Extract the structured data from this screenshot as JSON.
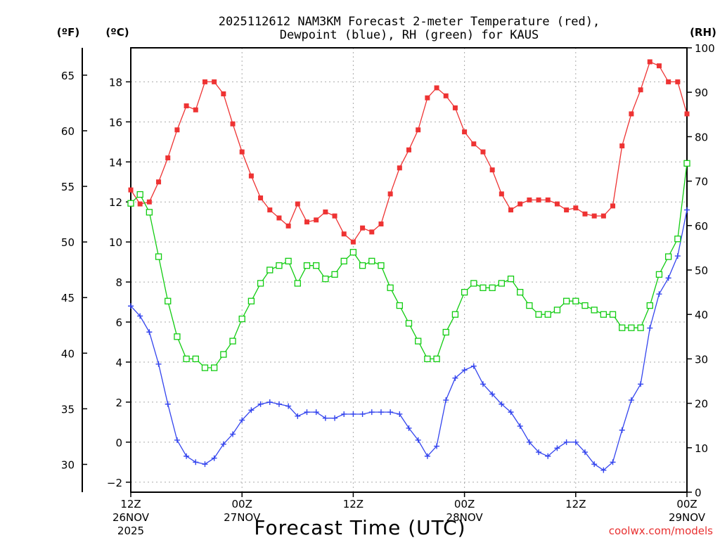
{
  "chart_data": {
    "type": "line",
    "title_line1": "2025112612 NAM3KM Forecast 2-meter Temperature (red),",
    "title_line2": "Dewpoint (blue), RH (green) for KAUS",
    "xlabel": "Forecast Time (UTC)",
    "credit": "coolwx.com/models",
    "left_units_f": "(ºF)",
    "left_units_c": "(ºC)",
    "right_units": "(RH)",
    "x_ticks": [
      {
        "hour": 0,
        "l1": "12Z",
        "l2": "26NOV",
        "l3": "2025"
      },
      {
        "hour": 12,
        "l1": "00Z",
        "l2": "27NOV",
        "l3": ""
      },
      {
        "hour": 24,
        "l1": "12Z",
        "l2": "",
        "l3": ""
      },
      {
        "hour": 36,
        "l1": "00Z",
        "l2": "28NOV",
        "l3": ""
      },
      {
        "hour": 48,
        "l1": "12Z",
        "l2": "",
        "l3": ""
      },
      {
        "hour": 60,
        "l1": "00Z",
        "l2": "29NOV",
        "l3": ""
      }
    ],
    "x_range": [
      0,
      60
    ],
    "y_celsius_range": [
      -2.5,
      19.7
    ],
    "y_celsius_ticks": [
      -2,
      0,
      2,
      4,
      6,
      8,
      10,
      12,
      14,
      16,
      18
    ],
    "y_fahrenheit_ticks": [
      30,
      35,
      40,
      45,
      50,
      55,
      60,
      65
    ],
    "y_rh_range": [
      0,
      100
    ],
    "y_rh_ticks": [
      0,
      10,
      20,
      30,
      40,
      50,
      60,
      70,
      80,
      90,
      100
    ],
    "grid": true,
    "series": [
      {
        "name": "2-meter Temperature",
        "units": "C",
        "color": "#ee3333",
        "marker": "filled-square",
        "values": [
          12.6,
          11.9,
          12.0,
          13.0,
          14.2,
          15.6,
          16.8,
          16.6,
          18.0,
          18.0,
          17.4,
          15.9,
          14.5,
          13.3,
          12.2,
          11.6,
          11.2,
          10.8,
          11.9,
          11.0,
          11.1,
          11.5,
          11.3,
          10.4,
          10.0,
          10.7,
          10.5,
          10.9,
          12.4,
          13.7,
          14.6,
          15.6,
          17.2,
          17.7,
          17.3,
          16.7,
          15.5,
          14.9,
          14.5,
          13.6,
          12.4,
          11.6,
          11.9,
          12.1,
          12.1,
          12.1,
          11.9,
          11.6,
          11.7,
          11.4,
          11.3,
          11.3,
          11.8,
          14.8,
          16.4,
          17.6,
          19.0,
          18.8,
          18.0,
          18.0,
          16.4
        ]
      },
      {
        "name": "Dewpoint",
        "units": "C",
        "color": "#3344ee",
        "marker": "plus",
        "values": [
          6.8,
          6.3,
          5.5,
          3.9,
          1.9,
          0.1,
          -0.7,
          -1.0,
          -1.1,
          -0.8,
          -0.1,
          0.4,
          1.1,
          1.6,
          1.9,
          2.0,
          1.9,
          1.8,
          1.3,
          1.5,
          1.5,
          1.2,
          1.2,
          1.4,
          1.4,
          1.4,
          1.5,
          1.5,
          1.5,
          1.4,
          0.7,
          0.1,
          -0.7,
          -0.2,
          2.1,
          3.2,
          3.6,
          3.8,
          2.9,
          2.4,
          1.9,
          1.5,
          0.8,
          0.0,
          -0.5,
          -0.7,
          -0.3,
          0.0,
          0.0,
          -0.5,
          -1.1,
          -1.4,
          -1.0,
          0.6,
          2.1,
          2.9,
          5.7,
          7.4,
          8.2,
          9.3,
          11.6
        ]
      },
      {
        "name": "RH",
        "units": "%",
        "color": "#11cc11",
        "marker": "open-square",
        "values": [
          65,
          67,
          63,
          53,
          43,
          35,
          30,
          30,
          28,
          28,
          31,
          34,
          39,
          43,
          47,
          50,
          51,
          52,
          47,
          51,
          51,
          48,
          49,
          52,
          54,
          51,
          52,
          51,
          46,
          42,
          38,
          34,
          30,
          30,
          36,
          40,
          45,
          47,
          46,
          46,
          47,
          48,
          45,
          42,
          40,
          40,
          41,
          43,
          43,
          42,
          41,
          40,
          40,
          37,
          37,
          37,
          42,
          49,
          53,
          57,
          74
        ]
      }
    ]
  }
}
